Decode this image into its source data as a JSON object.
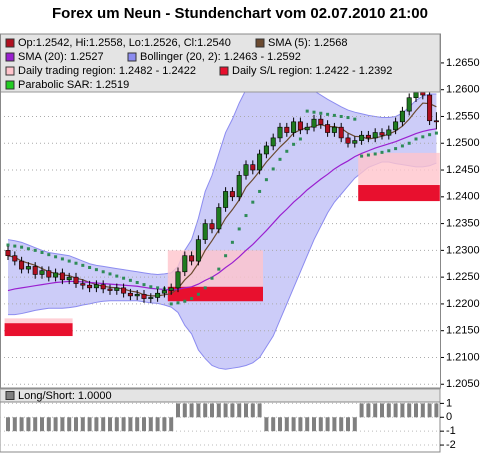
{
  "chart_data": [
    {
      "type": "candlestick",
      "title": "Forex um Neun - Stundenchart vom 02.07.2010 21:00",
      "name": "Op:1.2542, Hi:1.2558, Lo:1.2526, Cl:1.2540",
      "color": "#b01020",
      "up_color": "#1f7a1f",
      "down_color": "#b01020",
      "open": [
        1.23,
        1.229,
        1.228,
        1.2265,
        1.227,
        1.2255,
        1.2262,
        1.225,
        1.2258,
        1.2245,
        1.225,
        1.2238,
        1.2235,
        1.223,
        1.2236,
        1.2228,
        1.2225,
        1.223,
        1.222,
        1.2215,
        1.2218,
        1.221,
        1.2212,
        1.222,
        1.2225,
        1.223,
        1.226,
        1.229,
        1.228,
        1.232,
        1.235,
        1.234,
        1.238,
        1.241,
        1.24,
        1.244,
        1.246,
        1.245,
        1.248,
        1.2495,
        1.251,
        1.253,
        1.252,
        1.254,
        1.2525,
        1.253,
        1.2545,
        1.2535,
        1.252,
        1.253,
        1.251,
        1.25,
        1.2505,
        1.2515,
        1.251,
        1.252,
        1.2515,
        1.2525,
        1.254,
        1.256,
        1.2585,
        1.2595,
        1.259,
        1.2542
      ],
      "high": [
        1.2308,
        1.2298,
        1.2288,
        1.2278,
        1.2278,
        1.227,
        1.227,
        1.2266,
        1.2266,
        1.2258,
        1.2258,
        1.2246,
        1.2243,
        1.2244,
        1.2244,
        1.2236,
        1.2238,
        1.2238,
        1.2228,
        1.2226,
        1.2226,
        1.222,
        1.2228,
        1.2233,
        1.2238,
        1.2268,
        1.2298,
        1.2298,
        1.2328,
        1.2358,
        1.2358,
        1.2388,
        1.2418,
        1.2418,
        1.2448,
        1.2468,
        1.2468,
        1.2488,
        1.2503,
        1.2518,
        1.2538,
        1.2538,
        1.2548,
        1.2548,
        1.2538,
        1.2553,
        1.2553,
        1.2543,
        1.2538,
        1.2538,
        1.2518,
        1.2513,
        1.2523,
        1.2523,
        1.2528,
        1.2528,
        1.2533,
        1.2548,
        1.2568,
        1.2593,
        1.2603,
        1.2603,
        1.2598,
        1.2558
      ],
      "low": [
        1.2282,
        1.2272,
        1.2257,
        1.2257,
        1.2247,
        1.2247,
        1.2242,
        1.2242,
        1.2237,
        1.2237,
        1.223,
        1.2227,
        1.2222,
        1.2222,
        1.222,
        1.2217,
        1.2217,
        1.2212,
        1.2207,
        1.2207,
        1.2202,
        1.2202,
        1.2204,
        1.2212,
        1.2217,
        1.2222,
        1.2252,
        1.2272,
        1.2272,
        1.2312,
        1.2332,
        1.2332,
        1.2372,
        1.2392,
        1.2392,
        1.2432,
        1.2442,
        1.2442,
        1.2472,
        1.2487,
        1.2502,
        1.2512,
        1.2512,
        1.2517,
        1.2517,
        1.2522,
        1.2527,
        1.2512,
        1.2512,
        1.2502,
        1.2492,
        1.2492,
        1.2497,
        1.2502,
        1.2502,
        1.2507,
        1.2507,
        1.2517,
        1.2532,
        1.2552,
        1.2577,
        1.2582,
        1.2534,
        1.2526
      ],
      "close": [
        1.229,
        1.228,
        1.2265,
        1.227,
        1.2255,
        1.2262,
        1.225,
        1.2258,
        1.2245,
        1.225,
        1.2238,
        1.2235,
        1.223,
        1.2236,
        1.2228,
        1.2225,
        1.223,
        1.222,
        1.2215,
        1.2218,
        1.221,
        1.2212,
        1.222,
        1.2225,
        1.223,
        1.226,
        1.229,
        1.228,
        1.232,
        1.235,
        1.234,
        1.238,
        1.241,
        1.24,
        1.244,
        1.246,
        1.245,
        1.248,
        1.2495,
        1.251,
        1.253,
        1.252,
        1.254,
        1.2525,
        1.253,
        1.2545,
        1.2535,
        1.252,
        1.253,
        1.251,
        1.25,
        1.2505,
        1.2515,
        1.251,
        1.252,
        1.2515,
        1.2525,
        1.254,
        1.256,
        1.2585,
        1.2595,
        1.259,
        1.2542,
        1.254
      ],
      "series": [
        {
          "name": "SMA (5): 1.2568",
          "color": "#6b4a30",
          "style": "line",
          "values": [
            1.229,
            1.2287,
            1.228,
            1.2276,
            1.2272,
            1.2266,
            1.226,
            1.2257,
            1.2254,
            1.2253,
            1.2248,
            1.2245,
            1.224,
            1.2236,
            1.2233,
            1.2231,
            1.223,
            1.2228,
            1.2224,
            1.2222,
            1.2217,
            1.2215,
            1.2215,
            1.2217,
            1.2219,
            1.2229,
            1.2245,
            1.2257,
            1.2276,
            1.23,
            1.2318,
            1.2338,
            1.236,
            1.2376,
            1.2394,
            1.2418,
            1.2432,
            1.2448,
            1.2465,
            1.2479,
            1.2493,
            1.2505,
            1.2519,
            1.2525,
            1.2529,
            1.2532,
            1.2535,
            1.2531,
            1.2531,
            1.2528,
            1.2519,
            1.2513,
            1.2512,
            1.2508,
            1.251,
            1.2513,
            1.2517,
            1.2523,
            1.2532,
            1.2545,
            1.2561,
            1.2575,
            1.2574,
            1.2568
          ]
        },
        {
          "name": "SMA (20): 1.2527",
          "color": "#9a20d0",
          "style": "line",
          "values": [
            1.2225,
            1.2228,
            1.223,
            1.2232,
            1.2234,
            1.2236,
            1.2238,
            1.224,
            1.2241,
            1.2242,
            1.2242,
            1.2241,
            1.224,
            1.2239,
            1.2238,
            1.2237,
            1.2236,
            1.2235,
            1.2234,
            1.2233,
            1.2231,
            1.2229,
            1.2228,
            1.2227,
            1.2226,
            1.2227,
            1.223,
            1.2232,
            1.2237,
            1.2244,
            1.225,
            1.2258,
            1.2268,
            1.2277,
            1.2288,
            1.23,
            1.2311,
            1.2324,
            1.2337,
            1.2351,
            1.2365,
            1.2377,
            1.239,
            1.2401,
            1.2413,
            1.2423,
            1.2433,
            1.2442,
            1.2452,
            1.246,
            1.2467,
            1.2475,
            1.2481,
            1.2486,
            1.2491,
            1.2495,
            1.2499,
            1.2503,
            1.2508,
            1.2513,
            1.2518,
            1.2522,
            1.2525,
            1.2527
          ]
        },
        {
          "name": "Parabolic SAR: 1.2519",
          "color": "#2e8b57",
          "style": "dots",
          "values": [
            1.231,
            1.2308,
            1.2306,
            1.2303,
            1.23,
            1.2296,
            1.2292,
            1.2288,
            1.2284,
            1.228,
            1.2276,
            1.2272,
            1.2268,
            1.2264,
            1.226,
            1.2256,
            1.2252,
            1.2248,
            1.2244,
            1.224,
            1.2236,
            1.2232,
            1.223,
            1.2228,
            1.22,
            1.2202,
            1.2205,
            1.221,
            1.2218,
            1.223,
            1.2248,
            1.2265,
            1.229,
            1.2315,
            1.234,
            1.2365,
            1.239,
            1.241,
            1.2432,
            1.2452,
            1.247,
            1.2485,
            1.2498,
            1.2508,
            1.256,
            1.2558,
            1.2556,
            1.2554,
            1.2552,
            1.255,
            1.2548,
            1.2545,
            1.2476,
            1.2478,
            1.248,
            1.2483,
            1.2486,
            1.249,
            1.2495,
            1.25,
            1.2508,
            1.2512,
            1.2516,
            1.2519
          ]
        }
      ],
      "bollinger": {
        "name": "Bollinger (20, 2): 1.2463 - 1.2592",
        "color": "#8c8cf0",
        "fill": "#ccccf8",
        "upper": [
          1.232,
          1.2318,
          1.2315,
          1.231,
          1.2305,
          1.23,
          1.2296,
          1.2294,
          1.2292,
          1.229,
          1.2285,
          1.228,
          1.2275,
          1.2272,
          1.227,
          1.2268,
          1.2266,
          1.2264,
          1.2262,
          1.226,
          1.2258,
          1.2256,
          1.2255,
          1.2256,
          1.2258,
          1.227,
          1.23,
          1.232,
          1.236,
          1.241,
          1.244,
          1.248,
          1.252,
          1.2545,
          1.2575,
          1.26,
          1.2615,
          1.2625,
          1.263,
          1.2632,
          1.263,
          1.2625,
          1.262,
          1.2612,
          1.2605,
          1.2598,
          1.259,
          1.2582,
          1.2575,
          1.2568,
          1.2562,
          1.2558,
          1.2555,
          1.2552,
          1.255,
          1.2548,
          1.2548,
          1.255,
          1.2556,
          1.2568,
          1.258,
          1.2588,
          1.2592,
          1.2592
        ],
        "lower": [
          1.218,
          1.218,
          1.2182,
          1.2185,
          1.2188,
          1.219,
          1.2192,
          1.2192,
          1.2192,
          1.2193,
          1.2195,
          1.2198,
          1.22,
          1.2203,
          1.2205,
          1.2206,
          1.2206,
          1.2206,
          1.2206,
          1.2206,
          1.2204,
          1.2202,
          1.2201,
          1.2198,
          1.2194,
          1.2184,
          1.216,
          1.2144,
          1.2114,
          1.2098,
          1.2085,
          1.208,
          1.2078,
          1.208,
          1.2082,
          1.2085,
          1.209,
          1.21,
          1.212,
          1.214,
          1.217,
          1.22,
          1.223,
          1.226,
          1.229,
          1.232,
          1.2345,
          1.237,
          1.239,
          1.2405,
          1.242,
          1.2435,
          1.2445,
          1.2455,
          1.246,
          1.2465,
          1.2465,
          1.2462,
          1.246,
          1.2458,
          1.2456,
          1.2456,
          1.2458,
          1.2463
        ]
      },
      "regions": {
        "trading": {
          "name": "Daily trading region: 1.2482 - 1.2422",
          "color": "#ffc4cc"
        },
        "sl": {
          "name": "Daily S/L region: 1.2422 - 1.2392",
          "color": "#e8102e"
        },
        "days": [
          {
            "start": 0,
            "end": 10,
            "trading": [
              1.2173,
              1.2164
            ],
            "sl": [
              1.2164,
              1.214
            ]
          },
          {
            "start": 24,
            "end": 38,
            "trading": [
              1.23,
              1.2232
            ],
            "sl": [
              1.2232,
              1.2205
            ]
          },
          {
            "start": 52,
            "end": 64,
            "trading": [
              1.2482,
              1.2422
            ],
            "sl": [
              1.2422,
              1.2392
            ]
          }
        ]
      },
      "ylim": [
        1.2043,
        1.2704
      ],
      "yticks": [
        {
          "value": 1.265,
          "label": "1.2650"
        },
        {
          "value": 1.26,
          "label": "1.2600"
        },
        {
          "value": 1.255,
          "label": "1.2550"
        },
        {
          "value": 1.25,
          "label": "1.2500"
        },
        {
          "value": 1.245,
          "label": "1.2450"
        },
        {
          "value": 1.24,
          "label": "1.2400"
        },
        {
          "value": 1.235,
          "label": "1.2350"
        },
        {
          "value": 1.23,
          "label": "1.2300"
        },
        {
          "value": 1.225,
          "label": "1.2250"
        },
        {
          "value": 1.22,
          "label": "1.2200"
        },
        {
          "value": 1.215,
          "label": "1.2150"
        },
        {
          "value": 1.21,
          "label": "1.2100"
        },
        {
          "value": 1.205,
          "label": "1.2050"
        }
      ],
      "grid": true
    },
    {
      "type": "bar",
      "name": "Long/Short: 1.0000",
      "color": "#808080",
      "values": [
        -1,
        -1,
        -1,
        -1,
        -1,
        -1,
        -1,
        -1,
        -1,
        -1,
        -1,
        -1,
        -1,
        -1,
        -1,
        -1,
        -1,
        -1,
        -1,
        -1,
        -1,
        -1,
        -1,
        -1,
        -1,
        1,
        1,
        1,
        1,
        1,
        1,
        1,
        1,
        1,
        1,
        1,
        1,
        1,
        -1,
        -1,
        -1,
        -1,
        -1,
        -1,
        -1,
        -1,
        -1,
        -1,
        -1,
        -1,
        -1,
        -1,
        1,
        1,
        1,
        1,
        1,
        1,
        1,
        1,
        1,
        1,
        1,
        1
      ],
      "ylim": [
        -2.5,
        1.1
      ],
      "yticks": [
        1,
        0,
        -1,
        -2
      ],
      "grid": true
    }
  ]
}
